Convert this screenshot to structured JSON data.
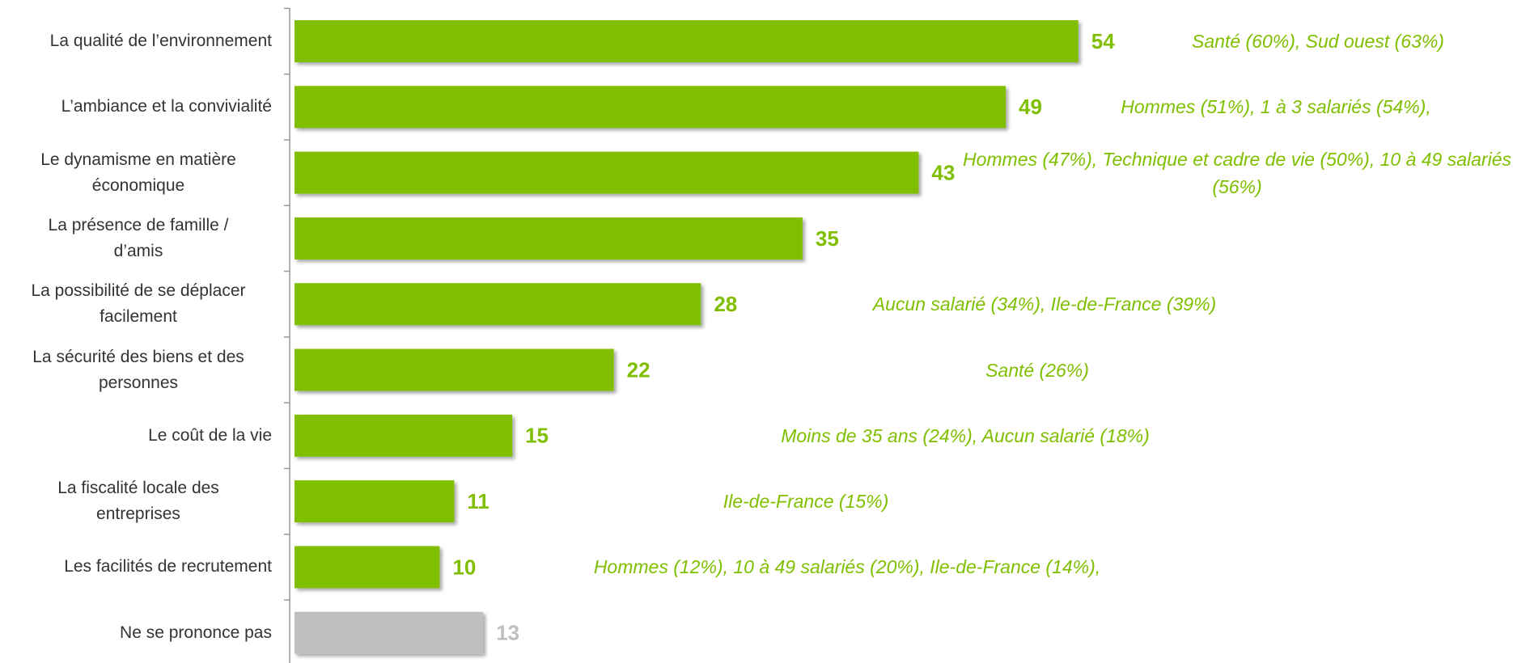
{
  "chart_data": {
    "type": "bar",
    "orientation": "horizontal",
    "categories": [
      "La qualité de l’environnement",
      "L’ambiance et la convivialité",
      "Le dynamisme en matière\néconomique",
      "La présence de famille /\nd’amis",
      "La possibilité de se déplacer\nfacilement",
      "La sécurité des biens et des\npersonnes",
      "Le coût de la vie",
      "La fiscalité locale des\nentreprises",
      "Les facilités de recrutement",
      "Ne se prononce pas"
    ],
    "values": [
      54,
      49,
      43,
      35,
      28,
      22,
      15,
      11,
      10,
      13
    ],
    "colors": [
      "#7fbf00",
      "#7fbf00",
      "#7fbf00",
      "#7fbf00",
      "#7fbf00",
      "#7fbf00",
      "#7fbf00",
      "#7fbf00",
      "#7fbf00",
      "#bfbfbf"
    ],
    "annotations": [
      "Santé (60%), Sud ouest (63%)",
      "Hommes (51%), 1 à 3 salariés (54%),",
      "Hommes (47%), Technique et cadre de vie (50%), 10 à 49 salariés (56%)",
      null,
      "Aucun salarié (34%), Ile-de-France (39%)",
      "Santé (26%)",
      "Moins de 35 ans (24%), Aucun salarié (18%)",
      "Ile-de-France (15%)",
      "Hommes (12%), 10 à 49 salariés (20%), Ile-de-France (14%),",
      null
    ],
    "annotation_color": "#7fbf00",
    "xlim": [
      0,
      83
    ]
  }
}
